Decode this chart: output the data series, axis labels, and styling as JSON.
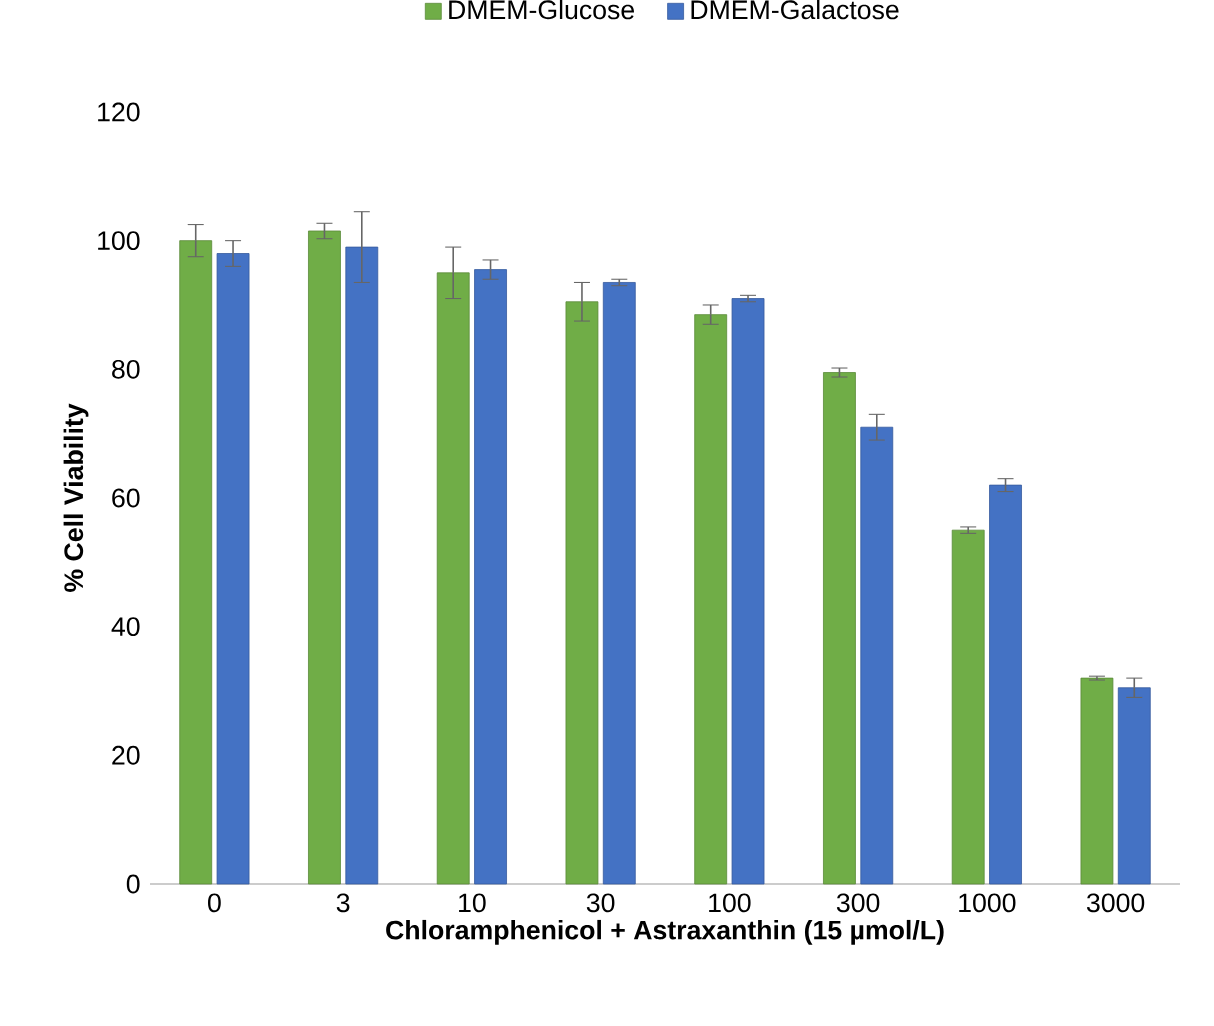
{
  "chart_data": {
    "type": "bar",
    "xlabel": "Chloramphenicol + Astraxanthin (15 µmol/L)",
    "ylabel": "% Cell Viability",
    "categories": [
      "0",
      "3",
      "10",
      "30",
      "100",
      "300",
      "1000",
      "3000"
    ],
    "series": [
      {
        "name": "DMEM-Glucose",
        "color": "#70ad47",
        "values": [
          100,
          101.5,
          95,
          90.5,
          88.5,
          79.5,
          55,
          32
        ],
        "errors": [
          2.5,
          1.2,
          4,
          3,
          1.5,
          0.7,
          0.5,
          0.3
        ]
      },
      {
        "name": "DMEM-Galactose",
        "color": "#4472c4",
        "values": [
          98,
          99,
          95.5,
          93.5,
          91,
          71,
          62,
          30.5
        ],
        "errors": [
          2,
          5.5,
          1.5,
          0.5,
          0.5,
          2,
          1,
          1.5
        ]
      }
    ],
    "ylim": [
      0,
      120
    ],
    "yticks": [
      0,
      20,
      40,
      60,
      80,
      100,
      120
    ],
    "grid": false,
    "legend": "top"
  }
}
